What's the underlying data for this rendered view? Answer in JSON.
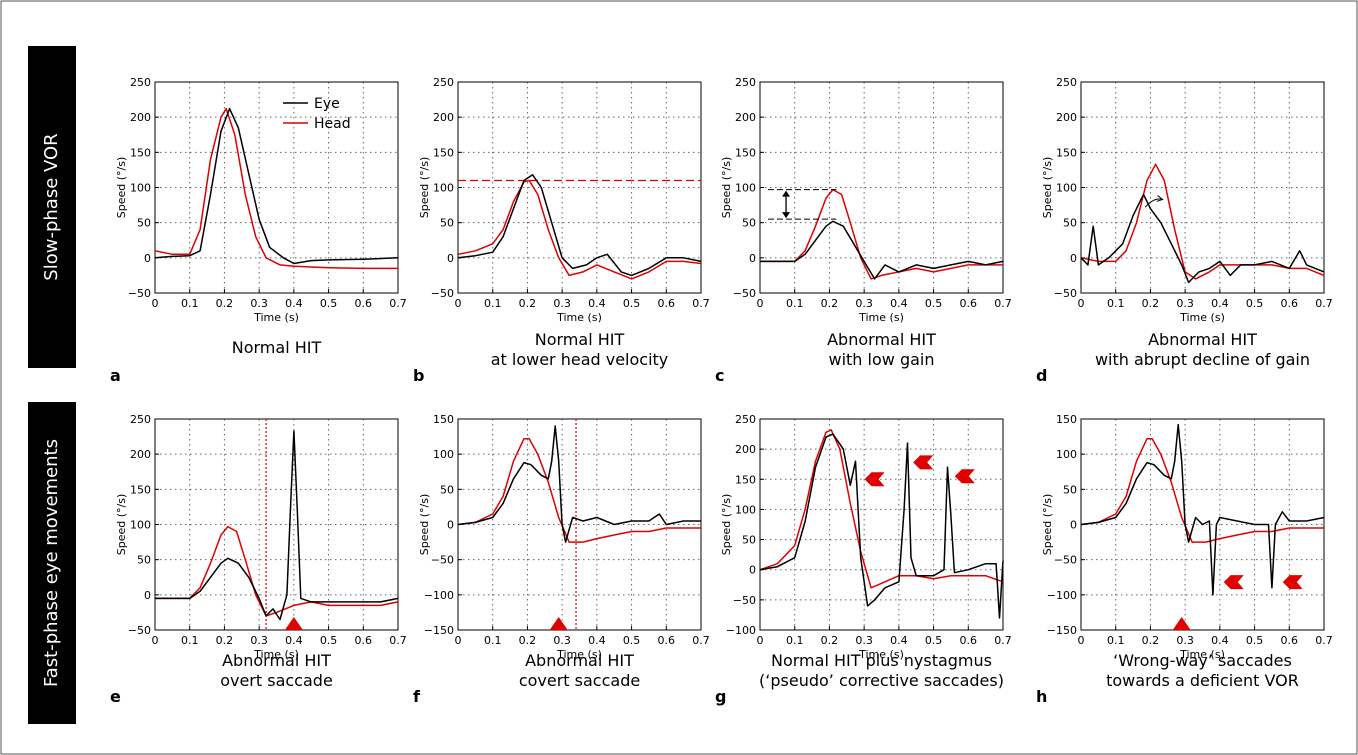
{
  "row_labels": [
    "Slow-phase VOR",
    "Fast-phase eye movements"
  ],
  "legend": {
    "eye": "Eye",
    "head": "Head"
  },
  "colors": {
    "eye": "#000000",
    "head": "#e00000",
    "marker": "#e00000",
    "row_label_bg": "#000000"
  },
  "chart_data": [
    {
      "type": "line",
      "panel": "a",
      "title_lines": [
        "Normal HIT"
      ],
      "xlabel": "Time (s)",
      "ylabel": "Speed (°/s)",
      "xlim": [
        0,
        0.7
      ],
      "ylim": [
        -50,
        250
      ],
      "xticks": [
        0,
        0.1,
        0.2,
        0.3,
        0.4,
        0.5,
        0.6,
        0.7
      ],
      "yticks": [
        -50,
        0,
        50,
        100,
        150,
        200,
        250
      ],
      "grid": true,
      "legend_position": "top-right",
      "series": [
        {
          "name": "Eye",
          "x": [
            0,
            0.05,
            0.1,
            0.13,
            0.16,
            0.19,
            0.215,
            0.24,
            0.27,
            0.3,
            0.33,
            0.37,
            0.4,
            0.45,
            0.5,
            0.6,
            0.7
          ],
          "y": [
            0,
            2,
            3,
            10,
            90,
            180,
            212,
            185,
            120,
            55,
            15,
            0,
            -8,
            -4,
            -3,
            -2,
            0
          ]
        },
        {
          "name": "Head",
          "x": [
            0,
            0.05,
            0.1,
            0.13,
            0.16,
            0.19,
            0.205,
            0.23,
            0.26,
            0.29,
            0.32,
            0.36,
            0.4,
            0.5,
            0.6,
            0.7
          ],
          "y": [
            10,
            5,
            5,
            40,
            140,
            200,
            212,
            175,
            90,
            30,
            0,
            -10,
            -12,
            -14,
            -15,
            -15
          ]
        }
      ]
    },
    {
      "type": "line",
      "panel": "b",
      "title_lines": [
        "Normal HIT",
        "at lower head velocity"
      ],
      "xlabel": "Time (s)",
      "ylabel": "Speed (°/s)",
      "xlim": [
        0,
        0.7
      ],
      "ylim": [
        -50,
        250
      ],
      "xticks": [
        0,
        0.1,
        0.2,
        0.3,
        0.4,
        0.5,
        0.6,
        0.7
      ],
      "yticks": [
        -50,
        0,
        50,
        100,
        150,
        200,
        250
      ],
      "grid": true,
      "reference_lines": [
        {
          "axis": "y",
          "value": 110,
          "style": "dashed"
        }
      ],
      "series": [
        {
          "name": "Eye",
          "x": [
            0,
            0.05,
            0.1,
            0.13,
            0.16,
            0.19,
            0.215,
            0.24,
            0.27,
            0.3,
            0.33,
            0.37,
            0.4,
            0.43,
            0.47,
            0.5,
            0.55,
            0.6,
            0.65,
            0.7
          ],
          "y": [
            0,
            3,
            8,
            30,
            70,
            110,
            118,
            100,
            50,
            0,
            -15,
            -10,
            0,
            5,
            -20,
            -25,
            -15,
            0,
            0,
            -5
          ]
        },
        {
          "name": "Head",
          "x": [
            0,
            0.05,
            0.1,
            0.13,
            0.16,
            0.19,
            0.205,
            0.23,
            0.26,
            0.29,
            0.32,
            0.36,
            0.4,
            0.45,
            0.5,
            0.55,
            0.6,
            0.65,
            0.7
          ],
          "y": [
            5,
            10,
            20,
            40,
            80,
            108,
            110,
            90,
            40,
            0,
            -25,
            -20,
            -10,
            -20,
            -30,
            -20,
            -5,
            -5,
            -8
          ]
        }
      ]
    },
    {
      "type": "line",
      "panel": "c",
      "title_lines": [
        "Abnormal HIT",
        "with low gain"
      ],
      "xlabel": "Time (s)",
      "ylabel": "Speed (°/s)",
      "xlim": [
        0,
        0.7
      ],
      "ylim": [
        -50,
        250
      ],
      "xticks": [
        0,
        0.1,
        0.2,
        0.3,
        0.4,
        0.5,
        0.6,
        0.7
      ],
      "yticks": [
        -50,
        0,
        50,
        100,
        150,
        200,
        250
      ],
      "grid": true,
      "annotations": [
        {
          "type": "gain-difference-arrow",
          "y_from": 97,
          "y_to": 55
        }
      ],
      "series": [
        {
          "name": "Eye",
          "x": [
            0,
            0.05,
            0.1,
            0.13,
            0.16,
            0.19,
            0.21,
            0.24,
            0.27,
            0.3,
            0.33,
            0.36,
            0.4,
            0.45,
            0.5,
            0.55,
            0.6,
            0.65,
            0.7
          ],
          "y": [
            -5,
            -5,
            -5,
            5,
            25,
            45,
            52,
            45,
            20,
            -5,
            -30,
            -10,
            -20,
            -10,
            -15,
            -10,
            -5,
            -10,
            -5
          ]
        },
        {
          "name": "Head",
          "x": [
            0,
            0.05,
            0.1,
            0.13,
            0.16,
            0.19,
            0.21,
            0.235,
            0.26,
            0.29,
            0.32,
            0.35,
            0.4,
            0.45,
            0.5,
            0.55,
            0.6,
            0.65,
            0.7
          ],
          "y": [
            -5,
            -5,
            -5,
            10,
            45,
            85,
            97,
            90,
            50,
            0,
            -30,
            -25,
            -20,
            -15,
            -20,
            -15,
            -10,
            -10,
            -10
          ]
        }
      ]
    },
    {
      "type": "line",
      "panel": "d",
      "title_lines": [
        "Abnormal HIT",
        "with abrupt decline of gain"
      ],
      "xlabel": "Time (s)",
      "ylabel": "Speed (°/s)",
      "xlim": [
        0,
        0.7
      ],
      "ylim": [
        -50,
        250
      ],
      "xticks": [
        0,
        0.1,
        0.2,
        0.3,
        0.4,
        0.5,
        0.6,
        0.7
      ],
      "yticks": [
        -50,
        0,
        50,
        100,
        150,
        200,
        250
      ],
      "grid": true,
      "annotations": [
        {
          "type": "gain-decline-arrow"
        }
      ],
      "series": [
        {
          "name": "Eye",
          "x": [
            0,
            0.02,
            0.035,
            0.05,
            0.08,
            0.12,
            0.15,
            0.18,
            0.2,
            0.23,
            0.26,
            0.29,
            0.31,
            0.34,
            0.37,
            0.4,
            0.43,
            0.46,
            0.5,
            0.55,
            0.6,
            0.63,
            0.65,
            0.7
          ],
          "y": [
            0,
            -10,
            45,
            -10,
            0,
            20,
            60,
            90,
            70,
            50,
            20,
            -10,
            -35,
            -20,
            -15,
            -5,
            -25,
            -10,
            -10,
            -5,
            -15,
            10,
            -10,
            -20
          ]
        },
        {
          "name": "Head",
          "x": [
            0,
            0.05,
            0.1,
            0.13,
            0.16,
            0.19,
            0.215,
            0.24,
            0.27,
            0.3,
            0.33,
            0.37,
            0.4,
            0.45,
            0.5,
            0.55,
            0.6,
            0.65,
            0.7
          ],
          "y": [
            0,
            -5,
            -5,
            10,
            50,
            110,
            133,
            110,
            40,
            -20,
            -30,
            -20,
            -10,
            -10,
            -10,
            -10,
            -15,
            -15,
            -25
          ]
        }
      ]
    },
    {
      "type": "line",
      "panel": "e",
      "title_lines": [
        "Abnormal HIT",
        "overt saccade"
      ],
      "xlabel": "Time (s)",
      "ylabel": "Speed (°/s)",
      "xlim": [
        0,
        0.7
      ],
      "ylim": [
        -50,
        250
      ],
      "xticks": [
        0,
        0.1,
        0.2,
        0.3,
        0.4,
        0.5,
        0.6,
        0.7
      ],
      "yticks": [
        -50,
        0,
        50,
        100,
        150,
        200,
        250
      ],
      "grid": true,
      "reference_lines": [
        {
          "axis": "x",
          "value": 0.32,
          "style": "dotted"
        }
      ],
      "markers": [
        {
          "shape": "up-triangle",
          "x": 0.4
        }
      ],
      "series": [
        {
          "name": "Eye",
          "x": [
            0,
            0.05,
            0.1,
            0.13,
            0.16,
            0.19,
            0.21,
            0.24,
            0.27,
            0.3,
            0.32,
            0.34,
            0.36,
            0.38,
            0.39,
            0.4,
            0.41,
            0.42,
            0.45,
            0.5,
            0.55,
            0.6,
            0.65,
            0.7
          ],
          "y": [
            -5,
            -5,
            -5,
            5,
            25,
            45,
            52,
            45,
            25,
            -5,
            -30,
            -20,
            -35,
            0,
            120,
            233,
            120,
            -5,
            -10,
            -10,
            -10,
            -10,
            -10,
            -5
          ]
        },
        {
          "name": "Head",
          "x": [
            0,
            0.05,
            0.1,
            0.13,
            0.16,
            0.19,
            0.21,
            0.235,
            0.26,
            0.29,
            0.32,
            0.35,
            0.4,
            0.45,
            0.5,
            0.55,
            0.6,
            0.65,
            0.7
          ],
          "y": [
            -5,
            -5,
            -5,
            10,
            45,
            85,
            97,
            90,
            50,
            0,
            -30,
            -25,
            -15,
            -10,
            -15,
            -15,
            -15,
            -15,
            -10
          ]
        }
      ]
    },
    {
      "type": "line",
      "panel": "f",
      "title_lines": [
        "Abnormal HIT",
        "covert saccade"
      ],
      "xlabel": "Time (s)",
      "ylabel": "Speed (°/s)",
      "xlim": [
        0,
        0.7
      ],
      "ylim": [
        -150,
        150
      ],
      "xticks": [
        0,
        0.1,
        0.2,
        0.3,
        0.4,
        0.5,
        0.6,
        0.7
      ],
      "yticks": [
        -150,
        -100,
        -50,
        0,
        50,
        100,
        150
      ],
      "grid": true,
      "reference_lines": [
        {
          "axis": "x",
          "value": 0.34,
          "style": "dotted"
        }
      ],
      "markers": [
        {
          "shape": "up-triangle",
          "x": 0.29
        }
      ],
      "series": [
        {
          "name": "Eye",
          "x": [
            0,
            0.05,
            0.1,
            0.13,
            0.16,
            0.19,
            0.21,
            0.24,
            0.26,
            0.27,
            0.28,
            0.29,
            0.3,
            0.31,
            0.33,
            0.36,
            0.4,
            0.45,
            0.5,
            0.55,
            0.58,
            0.6,
            0.65,
            0.7
          ],
          "y": [
            0,
            3,
            10,
            30,
            65,
            88,
            85,
            70,
            65,
            90,
            140,
            90,
            0,
            -25,
            10,
            5,
            10,
            0,
            5,
            5,
            15,
            0,
            5,
            5
          ]
        },
        {
          "name": "Head",
          "x": [
            0,
            0.05,
            0.1,
            0.13,
            0.16,
            0.19,
            0.205,
            0.23,
            0.26,
            0.29,
            0.32,
            0.36,
            0.4,
            0.45,
            0.5,
            0.55,
            0.6,
            0.65,
            0.7
          ],
          "y": [
            0,
            3,
            15,
            40,
            90,
            122,
            122,
            100,
            60,
            10,
            -25,
            -25,
            -20,
            -15,
            -10,
            -10,
            -5,
            -5,
            -5
          ]
        }
      ]
    },
    {
      "type": "line",
      "panel": "g",
      "title_lines": [
        "Normal HIT plus nystagmus",
        "(‘pseudo’ corrective saccades)"
      ],
      "xlabel": "Time (s)",
      "ylabel": "Speed (°/s)",
      "xlim": [
        0,
        0.7
      ],
      "ylim": [
        -100,
        250
      ],
      "xticks": [
        0,
        0.1,
        0.2,
        0.3,
        0.4,
        0.5,
        0.6,
        0.7
      ],
      "yticks": [
        -100,
        -50,
        0,
        50,
        100,
        150,
        200,
        250
      ],
      "grid": true,
      "markers": [
        {
          "shape": "left-chevron",
          "x": 0.33,
          "y": 150
        },
        {
          "shape": "left-chevron",
          "x": 0.47,
          "y": 178
        },
        {
          "shape": "left-chevron",
          "x": 0.59,
          "y": 155
        }
      ],
      "series": [
        {
          "name": "Eye",
          "x": [
            0,
            0.05,
            0.1,
            0.13,
            0.16,
            0.19,
            0.21,
            0.24,
            0.26,
            0.275,
            0.29,
            0.31,
            0.33,
            0.36,
            0.4,
            0.415,
            0.425,
            0.435,
            0.45,
            0.5,
            0.53,
            0.54,
            0.55,
            0.56,
            0.6,
            0.65,
            0.68,
            0.69,
            0.7
          ],
          "y": [
            0,
            5,
            20,
            80,
            170,
            220,
            225,
            200,
            140,
            180,
            20,
            -60,
            -50,
            -30,
            -20,
            100,
            210,
            20,
            -10,
            -10,
            0,
            170,
            90,
            -5,
            0,
            10,
            10,
            -80,
            15
          ]
        },
        {
          "name": "Head",
          "x": [
            0,
            0.05,
            0.1,
            0.13,
            0.16,
            0.19,
            0.205,
            0.23,
            0.26,
            0.29,
            0.32,
            0.36,
            0.4,
            0.45,
            0.5,
            0.55,
            0.6,
            0.65,
            0.7
          ],
          "y": [
            0,
            10,
            40,
            100,
            180,
            228,
            232,
            200,
            110,
            30,
            -30,
            -20,
            -10,
            -10,
            -15,
            -10,
            -10,
            -10,
            -20
          ]
        }
      ]
    },
    {
      "type": "line",
      "panel": "h",
      "title_lines": [
        "‘Wrong-way’ saccades",
        "towards a deficient VOR"
      ],
      "xlabel": "Time (s)",
      "ylabel": "Speed (°/s)",
      "xlim": [
        0,
        0.7
      ],
      "ylim": [
        -150,
        150
      ],
      "xticks": [
        0,
        0.1,
        0.2,
        0.3,
        0.4,
        0.5,
        0.6,
        0.7
      ],
      "yticks": [
        -150,
        -100,
        -50,
        0,
        50,
        100,
        150
      ],
      "grid": true,
      "markers": [
        {
          "shape": "up-triangle",
          "x": 0.29
        },
        {
          "shape": "left-chevron",
          "x": 0.44,
          "y": -82
        },
        {
          "shape": "left-chevron",
          "x": 0.61,
          "y": -82
        }
      ],
      "series": [
        {
          "name": "Eye",
          "x": [
            0,
            0.05,
            0.1,
            0.13,
            0.16,
            0.19,
            0.21,
            0.24,
            0.26,
            0.27,
            0.28,
            0.29,
            0.3,
            0.31,
            0.33,
            0.35,
            0.37,
            0.38,
            0.39,
            0.4,
            0.45,
            0.5,
            0.54,
            0.55,
            0.56,
            0.58,
            0.6,
            0.65,
            0.7
          ],
          "y": [
            0,
            3,
            10,
            30,
            65,
            88,
            85,
            70,
            65,
            90,
            142,
            90,
            0,
            -25,
            10,
            0,
            5,
            -100,
            0,
            10,
            5,
            0,
            0,
            -90,
            0,
            18,
            5,
            5,
            10
          ]
        },
        {
          "name": "Head",
          "x": [
            0,
            0.05,
            0.1,
            0.13,
            0.16,
            0.19,
            0.205,
            0.23,
            0.26,
            0.29,
            0.32,
            0.36,
            0.4,
            0.45,
            0.5,
            0.55,
            0.6,
            0.65,
            0.7
          ],
          "y": [
            0,
            3,
            15,
            40,
            90,
            122,
            122,
            100,
            60,
            10,
            -25,
            -25,
            -20,
            -15,
            -10,
            -10,
            -5,
            -5,
            -5
          ]
        }
      ]
    }
  ]
}
